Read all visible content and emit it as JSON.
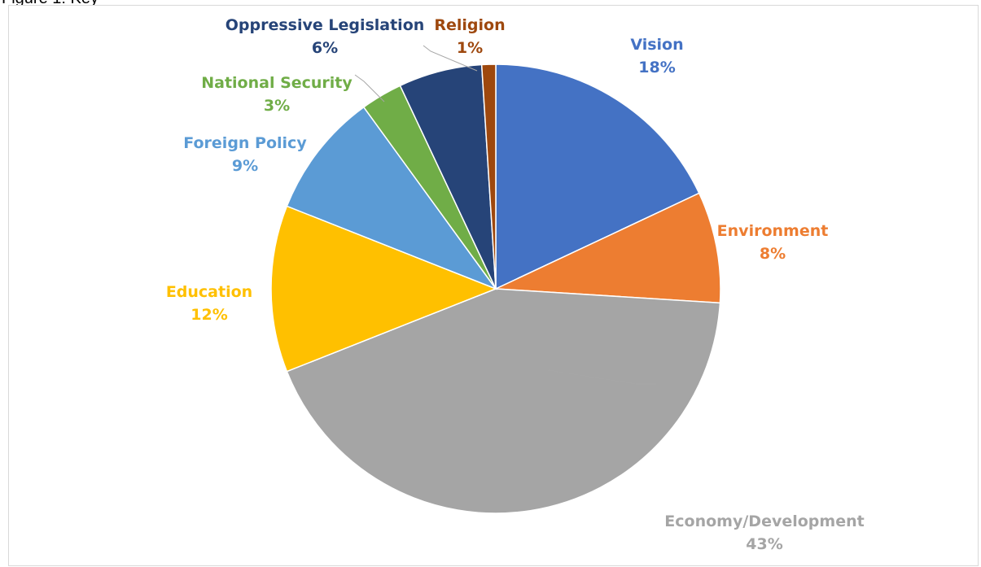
{
  "caption": "Figure 1: Key",
  "chart_data": {
    "type": "pie",
    "title": "",
    "slices": [
      {
        "label": "Vision",
        "value": 18,
        "value_label": "18%",
        "color": "#4472C4"
      },
      {
        "label": "Environment",
        "value": 8,
        "value_label": "8%",
        "color": "#ED7D31"
      },
      {
        "label": "Economy/Development",
        "value": 43,
        "value_label": "43%",
        "color": "#A5A5A5",
        "label_color": "#A5A5A5"
      },
      {
        "label": "Education",
        "value": 12,
        "value_label": "12%",
        "color": "#FFC000"
      },
      {
        "label": "Foreign Policy",
        "value": 9,
        "value_label": "9%",
        "color": "#5B9BD5"
      },
      {
        "label": "National Security",
        "value": 3,
        "value_label": "3%",
        "color": "#70AD47"
      },
      {
        "label": "Oppressive Legislation",
        "value": 6,
        "value_label": "6%",
        "color": "#264478"
      },
      {
        "label": "Religion",
        "value": 1,
        "value_label": "1%",
        "color": "#9E480E"
      }
    ],
    "start_angle_deg": 0,
    "direction": "clockwise",
    "legend": "none",
    "data_labels": "category-and-percent"
  }
}
